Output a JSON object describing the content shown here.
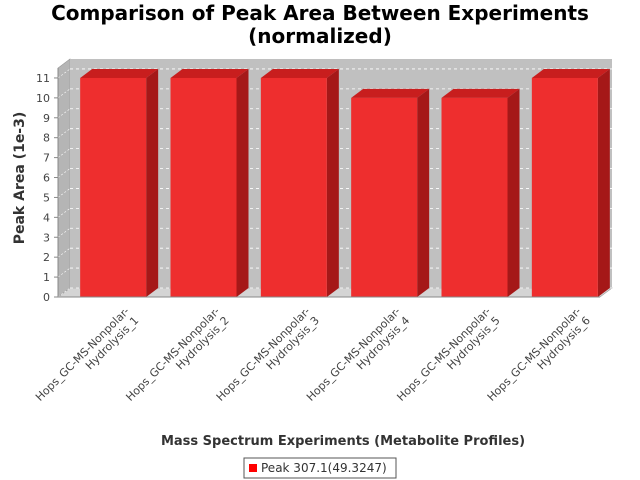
{
  "chart_data": {
    "type": "bar",
    "title_lines": [
      "Comparison of Peak Area Between Experiments",
      "(normalized)"
    ],
    "xlabel": "Mass Spectrum Experiments (Metabolite Profiles)",
    "ylabel": "Peak Area (1e-3)",
    "ylim": [
      0,
      11.5
    ],
    "yticks": [
      0,
      1,
      2,
      3,
      4,
      5,
      6,
      7,
      8,
      9,
      10,
      11
    ],
    "grid": true,
    "legend_position": "bottom-center",
    "categories": [
      [
        "Hops_GC-MS-Nonpolar-",
        "Hydrolysis_1"
      ],
      [
        "Hops_GC-MS-Nonpolar-",
        "Hydrolysis_2"
      ],
      [
        "Hops_GC-MS-Nonpolar-",
        "Hydrolysis_3"
      ],
      [
        "Hops_GC-MS-Nonpolar-",
        "Hydrolysis_4"
      ],
      [
        "Hops_GC-MS-Nonpolar-",
        "Hydrolysis_5"
      ],
      [
        "Hops_GC-MS-Nonpolar-",
        "Hydrolysis_6"
      ]
    ],
    "series": [
      {
        "name": "Peak 307.1(49.3247)",
        "color": "#ee2e2e",
        "values": [
          11,
          11,
          11,
          10,
          10,
          11
        ]
      }
    ]
  }
}
